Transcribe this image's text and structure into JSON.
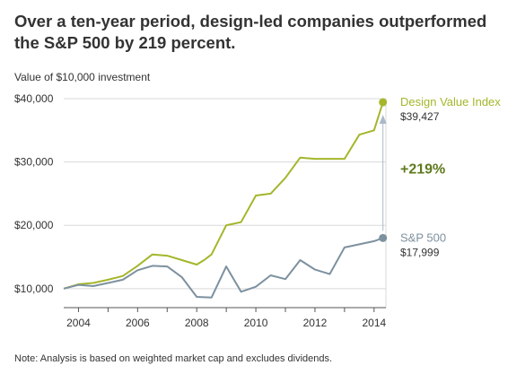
{
  "headline": "Over a ten-year period, design-led companies outperformed the S&P 500 by 219 percent.",
  "subtitle": "Value of $10,000 investment",
  "note": "Note: Analysis is based on weighted market cap and excludes dividends.",
  "outperformance_label": "+219%",
  "colors": {
    "design": "#a5b62b",
    "sp500": "#7d919f",
    "outperformance": "#5f7a1c",
    "arrow": "#a9b9c9",
    "grid": "#d9d9d9",
    "axis": "#555555",
    "text": "#333333"
  },
  "chart_data": {
    "type": "line",
    "title": "Over a ten-year period, design-led companies outperformed the S&P 500 by 219 percent.",
    "subtitle": "Value of $10,000 investment",
    "xlabel": "",
    "ylabel": "",
    "xlim": [
      2003.5,
      2014.4
    ],
    "ylim": [
      7000,
      40000
    ],
    "x_ticks": [
      2004,
      2006,
      2008,
      2010,
      2012,
      2014
    ],
    "y_ticks": [
      10000,
      20000,
      30000,
      40000
    ],
    "y_tick_labels": [
      "$10,000",
      "$20,000",
      "$30,000",
      "$40,000"
    ],
    "grid": true,
    "legend": "inline-right",
    "series": [
      {
        "name": "Design Value Index",
        "end_label": "$39,427",
        "color": "#a5b62b",
        "x": [
          2003.5,
          2004.0,
          2004.5,
          2005.0,
          2005.5,
          2006.0,
          2006.5,
          2007.0,
          2007.5,
          2008.0,
          2008.25,
          2008.5,
          2009.0,
          2009.5,
          2010.0,
          2010.5,
          2011.0,
          2011.5,
          2012.0,
          2012.5,
          2013.0,
          2013.5,
          2014.0,
          2014.3
        ],
        "y": [
          10000,
          10700,
          10900,
          11400,
          12000,
          13600,
          15400,
          15200,
          14500,
          13800,
          14500,
          15400,
          20000,
          20500,
          24700,
          25000,
          27500,
          30700,
          30500,
          30500,
          30500,
          34300,
          35000,
          39427
        ]
      },
      {
        "name": "S&P 500",
        "end_label": "$17,999",
        "color": "#7d919f",
        "x": [
          2003.5,
          2004.0,
          2004.5,
          2005.0,
          2005.5,
          2006.0,
          2006.5,
          2007.0,
          2007.5,
          2008.0,
          2008.5,
          2009.0,
          2009.5,
          2010.0,
          2010.5,
          2011.0,
          2011.5,
          2012.0,
          2012.5,
          2013.0,
          2013.5,
          2014.0,
          2014.3
        ],
        "y": [
          10000,
          10600,
          10400,
          10900,
          11400,
          12900,
          13600,
          13500,
          11800,
          8700,
          8600,
          13500,
          9500,
          10300,
          12100,
          11500,
          14500,
          13000,
          12300,
          16500,
          17000,
          17500,
          17999
        ]
      }
    ]
  }
}
